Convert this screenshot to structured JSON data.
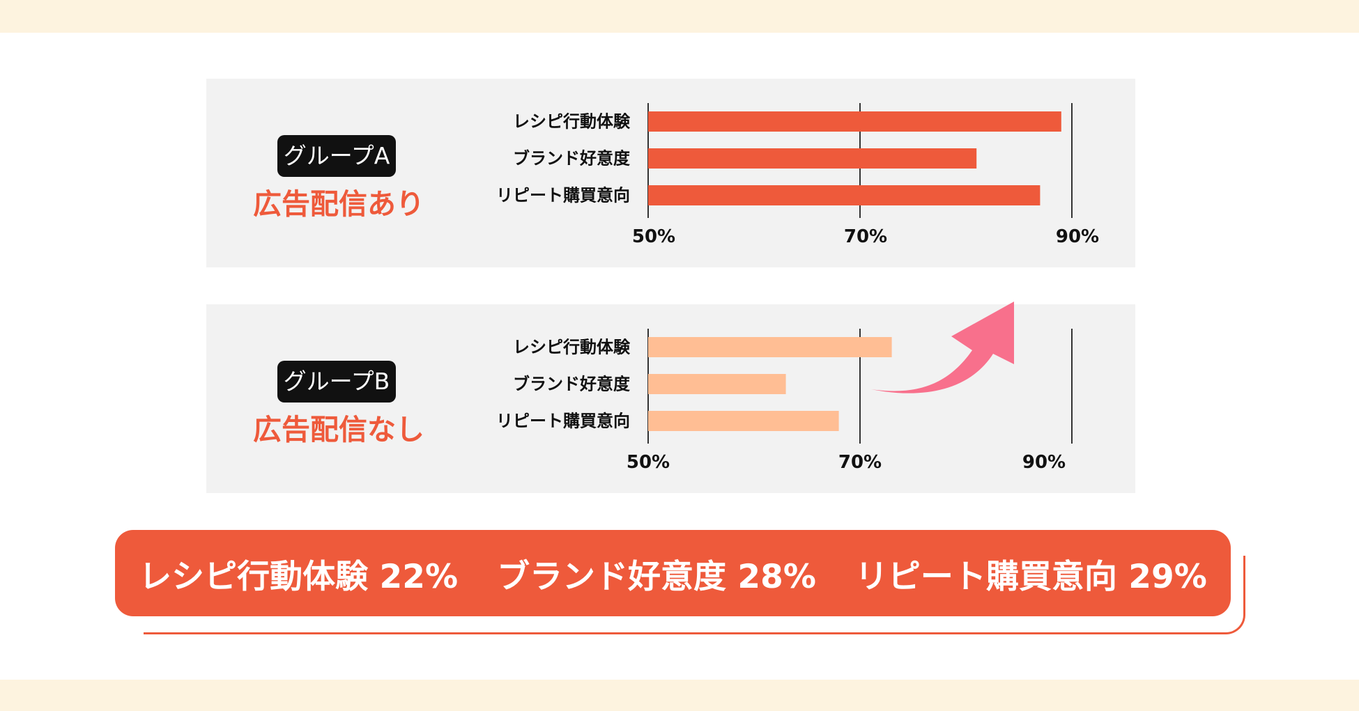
{
  "groups": [
    {
      "tag": "グループA",
      "subtitle": "広告配信あり"
    },
    {
      "tag": "グループB",
      "subtitle": "広告配信なし"
    }
  ],
  "summary": [
    "レシピ行動体験 22%",
    "ブランド好意度 28%",
    "リピート購買意向 29%"
  ],
  "colors": {
    "bar_a": "#ee5a3b",
    "bar_b": "#ffbe94",
    "accent": "#ee5a3b",
    "arrow": "#f8708c",
    "band": "#fdf3df"
  },
  "chart_data": [
    {
      "type": "bar",
      "orientation": "horizontal",
      "categories": [
        "レシピ行動体験",
        "ブランド好意度",
        "リピート購買意向"
      ],
      "values": [
        89,
        81,
        87
      ],
      "xlim": [
        50,
        90
      ],
      "ticks": [
        "50%",
        "70%",
        "90%"
      ],
      "tick_values": [
        50,
        70,
        90
      ],
      "grid": true
    },
    {
      "type": "bar",
      "orientation": "horizontal",
      "categories": [
        "レシピ行動体験",
        "ブランド好意度",
        "リピート購買意向"
      ],
      "values": [
        73,
        63,
        68
      ],
      "xlim": [
        50,
        90
      ],
      "ticks": [
        "50%",
        "70%",
        "90%"
      ],
      "tick_values": [
        50,
        70,
        90
      ],
      "grid": true
    }
  ]
}
